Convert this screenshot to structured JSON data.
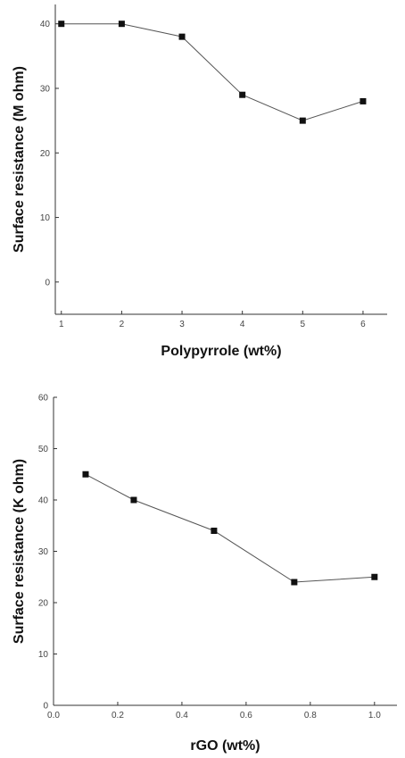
{
  "chart_data": [
    {
      "type": "line",
      "xlabel": "Polypyrrole (wt%)",
      "ylabel": "Surface resistance (M ohm)",
      "xlim": [
        0.9,
        6.4
      ],
      "ylim": [
        -5,
        43
      ],
      "xticks": [
        1,
        2,
        3,
        4,
        5,
        6
      ],
      "xtick_labels": [
        "1",
        "2",
        "3",
        "4",
        "5",
        "6"
      ],
      "yticks": [
        0,
        10,
        20,
        30,
        40
      ],
      "ytick_labels": [
        "0",
        "10",
        "20",
        "30",
        "40"
      ],
      "grid": false,
      "x": [
        1,
        2,
        3,
        4,
        5,
        6
      ],
      "series": [
        {
          "values": [
            40,
            40,
            38,
            29,
            25,
            28
          ]
        }
      ]
    },
    {
      "type": "line",
      "xlabel": "rGO (wt%)",
      "ylabel": "Surface resistance (K ohm)",
      "xlim": [
        0.0,
        1.07
      ],
      "ylim": [
        0,
        60
      ],
      "xticks": [
        0.0,
        0.2,
        0.4,
        0.6,
        0.8,
        1.0
      ],
      "xtick_labels": [
        "0.0",
        "0.2",
        "0.4",
        "0.6",
        "0.8",
        "1.0"
      ],
      "yticks": [
        0,
        10,
        20,
        30,
        40,
        50,
        60
      ],
      "ytick_labels": [
        "0",
        "10",
        "20",
        "30",
        "40",
        "50",
        "60"
      ],
      "grid": false,
      "x": [
        0.1,
        0.25,
        0.5,
        0.75,
        1.0
      ],
      "series": [
        {
          "values": [
            45,
            40,
            34,
            24,
            25
          ]
        }
      ]
    }
  ]
}
